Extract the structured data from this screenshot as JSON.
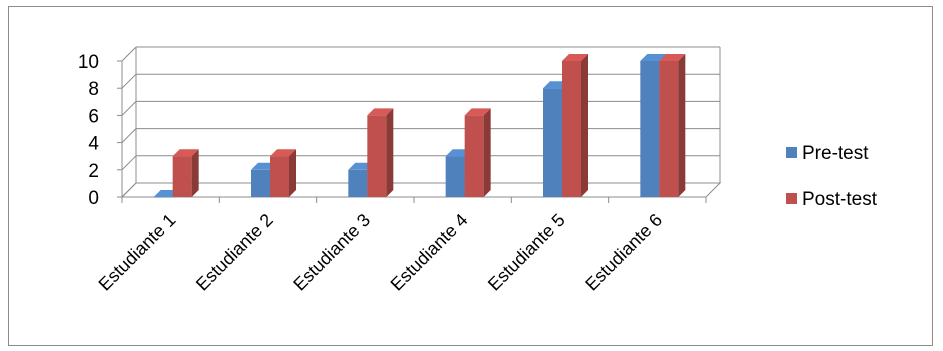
{
  "chart_data": {
    "type": "bar",
    "categories": [
      "Estudiante 1",
      "Estudiante 2",
      "Estudiante 3",
      "Estudiante 4",
      "Estudiante 5",
      "Estudiante 6"
    ],
    "series": [
      {
        "name": "Pre-test",
        "values": [
          0,
          2,
          2,
          3,
          8,
          10
        ],
        "color": "#4f81bd"
      },
      {
        "name": "Post-test",
        "values": [
          3,
          3,
          6,
          6,
          10,
          10
        ],
        "color": "#c0504d"
      }
    ],
    "yticks": [
      0,
      2,
      4,
      6,
      8,
      10
    ],
    "ylim": [
      0,
      10
    ],
    "grid": true,
    "three_d": true,
    "legend_position": "right"
  }
}
